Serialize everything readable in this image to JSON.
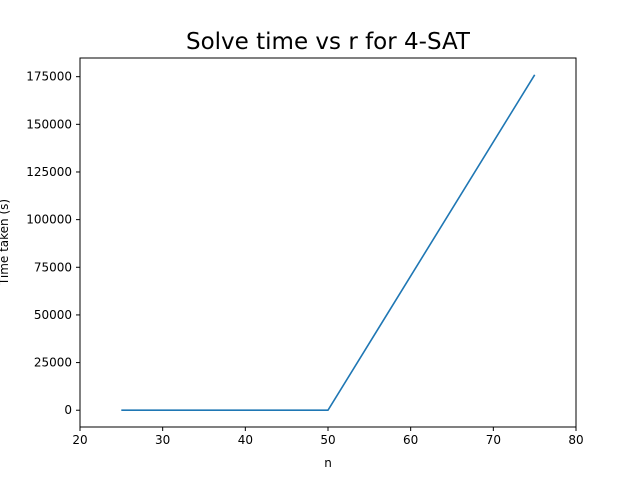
{
  "chart_data": {
    "type": "line",
    "title": "Solve time vs r for 4-SAT",
    "xlabel": "n",
    "ylabel": "Time taken (s)",
    "xlim": [
      20,
      80
    ],
    "ylim": [
      -8800,
      184800
    ],
    "xticks": [
      20,
      30,
      40,
      50,
      60,
      70,
      80
    ],
    "yticks": [
      0,
      25000,
      50000,
      75000,
      100000,
      125000,
      150000,
      175000
    ],
    "grid": false,
    "series": [
      {
        "color": "#1f77b4",
        "x": [
          25,
          50,
          75
        ],
        "y": [
          0,
          0,
          176000
        ]
      }
    ]
  }
}
